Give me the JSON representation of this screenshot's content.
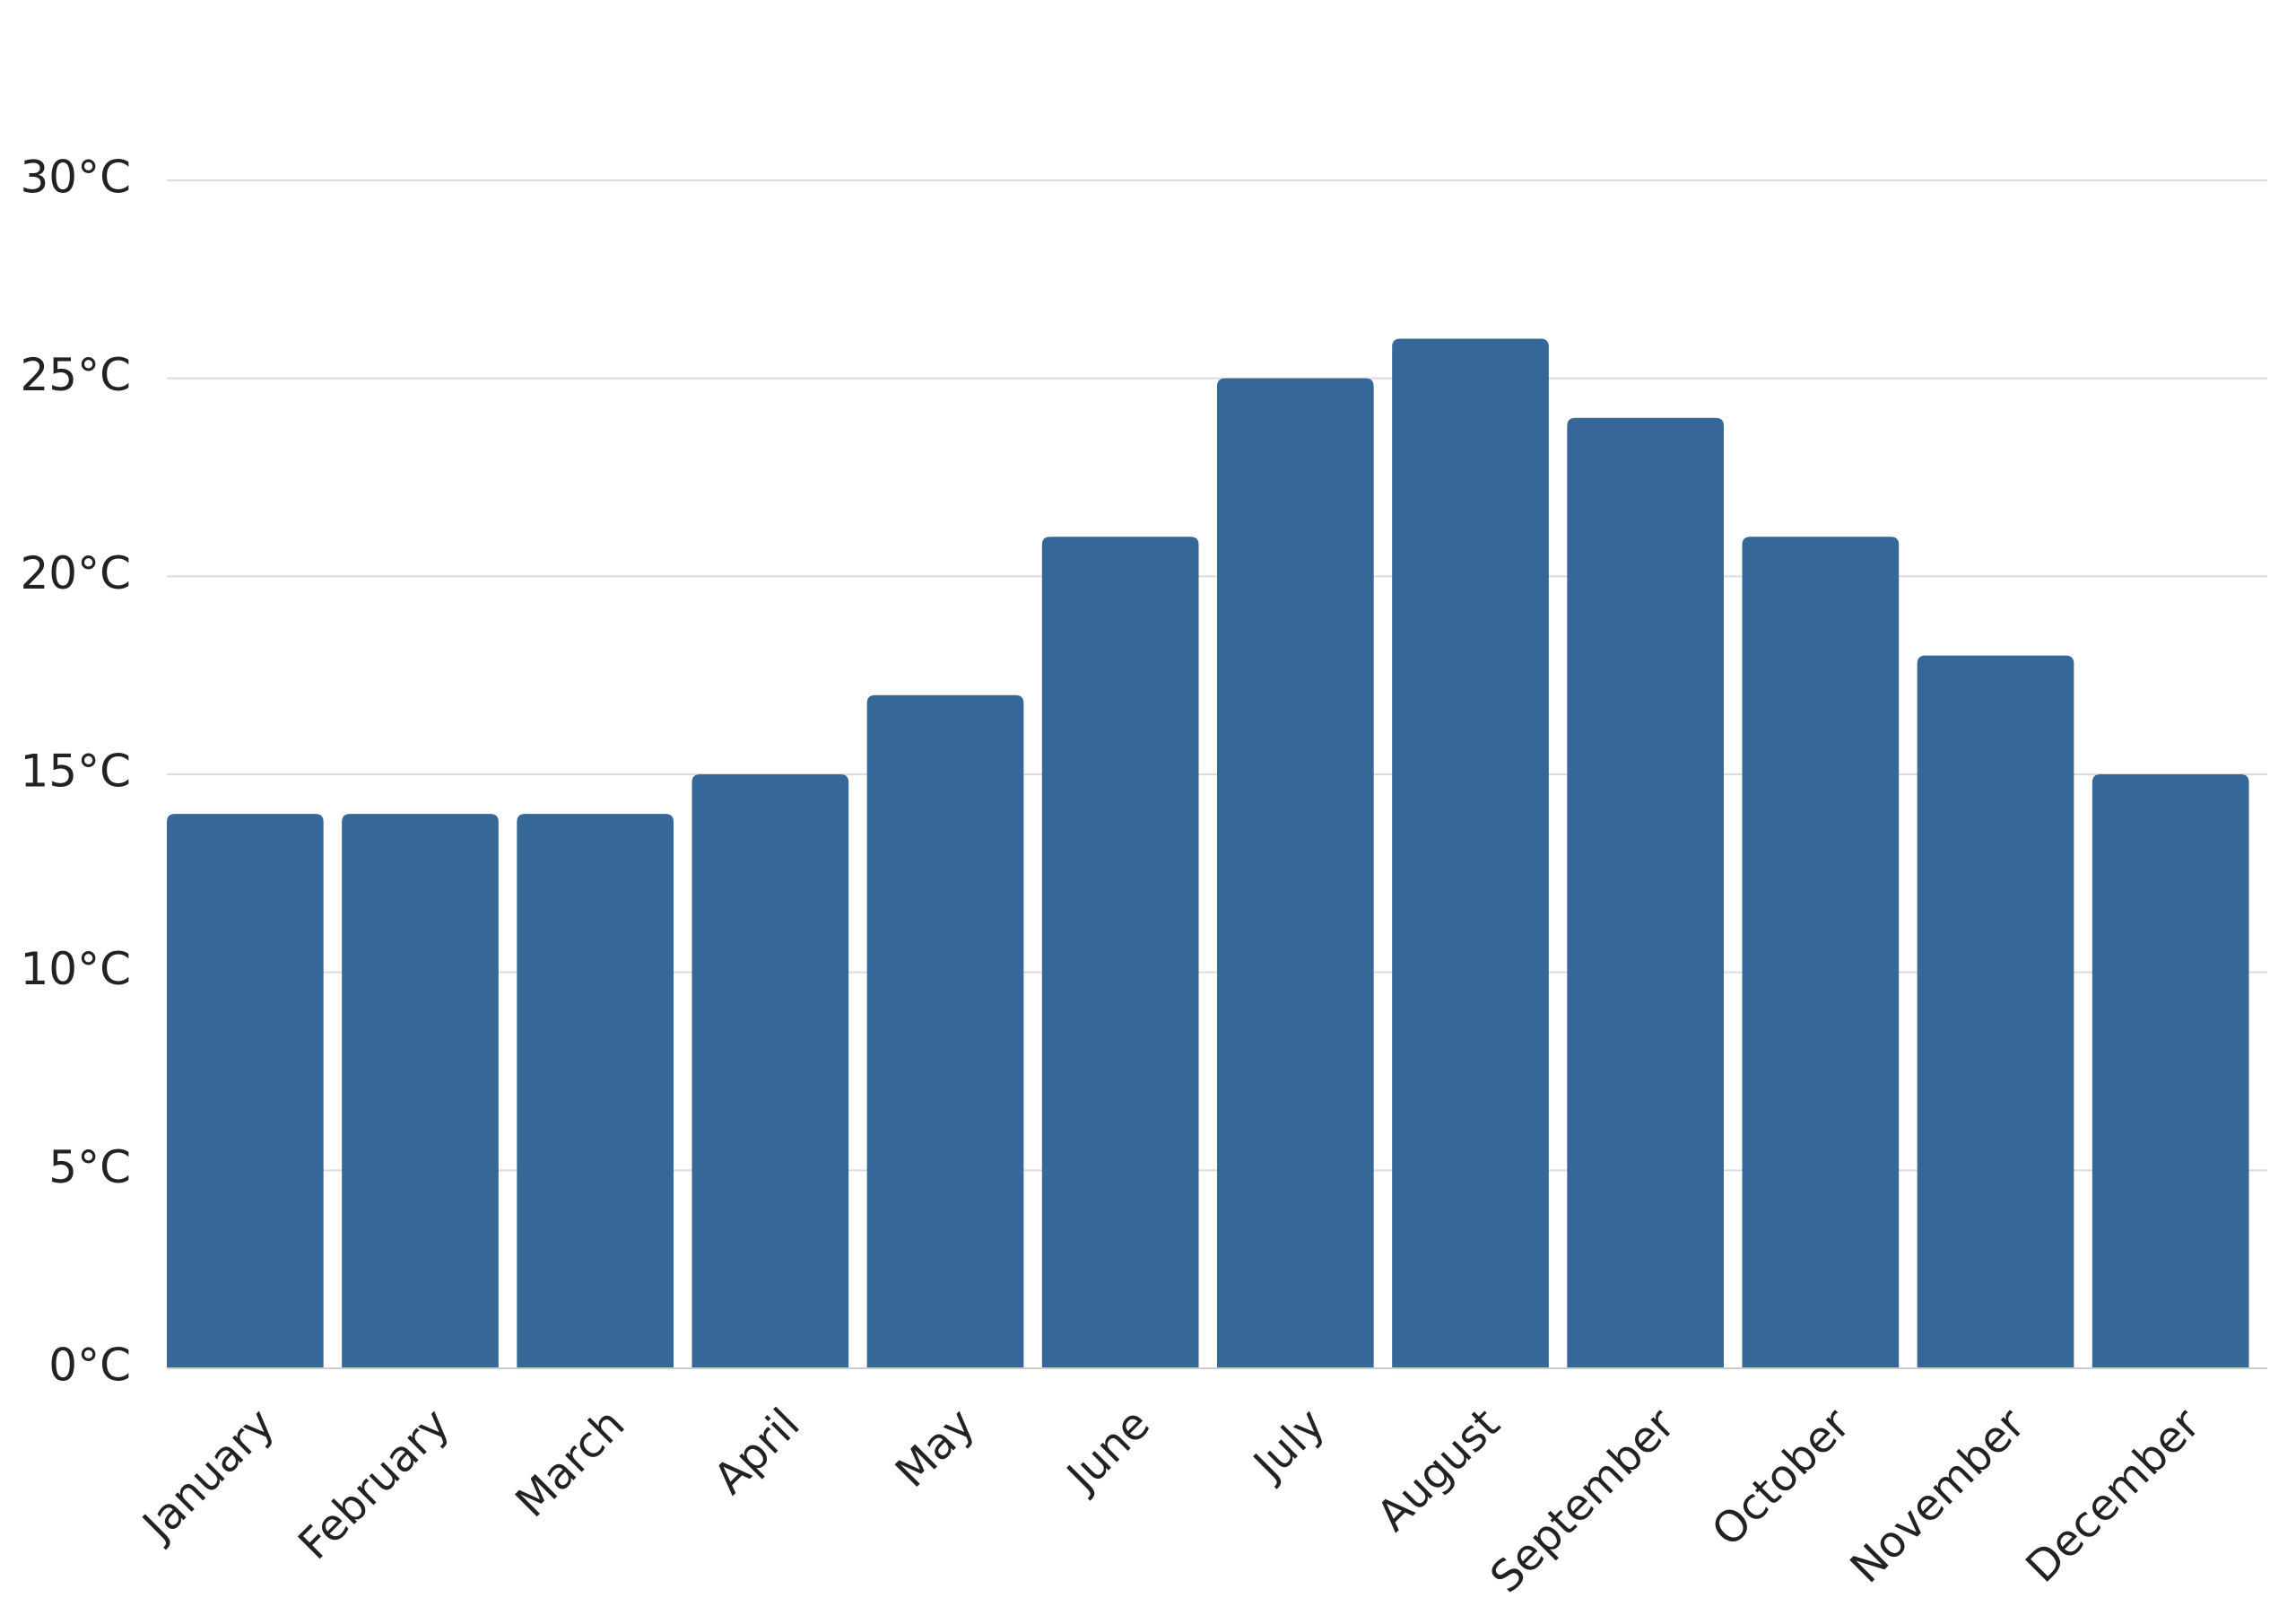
{
  "chart_data": {
    "type": "bar",
    "categories": [
      "January",
      "February",
      "March",
      "April",
      "May",
      "June",
      "July",
      "August",
      "September",
      "October",
      "November",
      "December"
    ],
    "values": [
      14,
      14,
      14,
      15,
      17,
      21,
      25,
      26,
      24,
      21,
      18,
      15
    ],
    "color": "#356898",
    "ylim": [
      0,
      30
    ],
    "yticks": [
      {
        "value": 0,
        "label": "0°C"
      },
      {
        "value": 5,
        "label": "5°C"
      },
      {
        "value": 10,
        "label": "10°C"
      },
      {
        "value": 15,
        "label": "15°C"
      },
      {
        "value": 20,
        "label": "20°C"
      },
      {
        "value": 25,
        "label": "25°C"
      },
      {
        "value": 30,
        "label": "30°C"
      }
    ],
    "grid": true
  }
}
